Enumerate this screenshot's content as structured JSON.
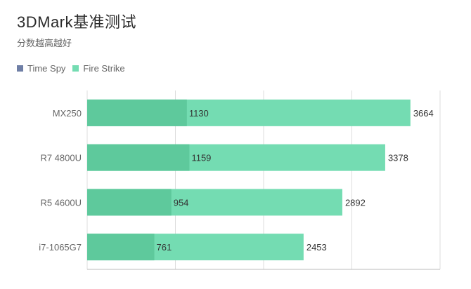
{
  "chart_data": {
    "type": "bar",
    "orientation": "horizontal",
    "title": "3DMark基准测试",
    "subtitle": "分数越高越好",
    "categories": [
      "MX250",
      "R7 4800U",
      "R5 4600U",
      "i7-1065G7"
    ],
    "series": [
      {
        "name": "Time Spy",
        "values": [
          1130,
          1159,
          954,
          761
        ],
        "color": "#6f7fa6"
      },
      {
        "name": "Fire Strike",
        "values": [
          3664,
          3378,
          2892,
          2453
        ],
        "color": "#74dcb2"
      }
    ],
    "overlap_color": "#5ec99c",
    "xlim": [
      0,
      4000
    ],
    "grid": true,
    "legend_position": "top-left",
    "colors": {
      "grid": "#dddddd",
      "axis": "#bbbbbb"
    }
  }
}
